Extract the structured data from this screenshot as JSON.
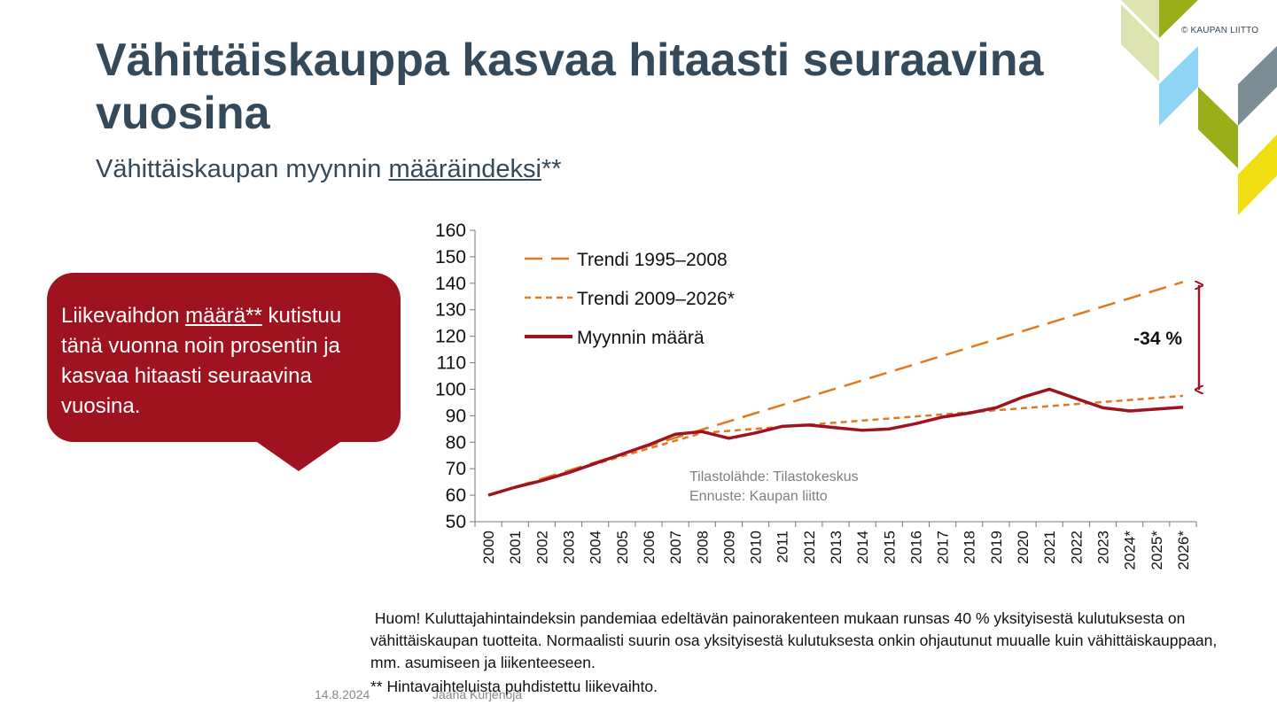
{
  "header": {
    "title": "Vähittäiskauppa kasvaa hitaasti seuraavina vuosina",
    "subtitle_prefix": "Vähittäiskaupan myynnin ",
    "subtitle_link": "määräindeksi",
    "subtitle_suffix": "**",
    "copyright": "© KAUPAN LIITTO"
  },
  "callout": {
    "part1": "Liikevaihdon ",
    "underlined": "määrä**",
    "part2": " kutistuu tänä vuonna noin prosentin ja kasvaa hitaasti seuraavina vuosina."
  },
  "colors": {
    "title": "#34495a",
    "callout_bg": "#9f1220",
    "trend_color": "#e07a1f",
    "sales_color": "#9f1220",
    "deco_lime": "#dde3b0",
    "deco_green": "#99ae18",
    "deco_blue": "#8fd4f2",
    "deco_gray": "#7a8d95",
    "deco_yellow": "#f0df10"
  },
  "chart_data": {
    "type": "line",
    "categories": [
      "2000",
      "2001",
      "2002",
      "2003",
      "2004",
      "2005",
      "2006",
      "2007",
      "2008",
      "2009",
      "2010",
      "2011",
      "2012",
      "2013",
      "2014",
      "2015",
      "2016",
      "2017",
      "2018",
      "2019",
      "2020",
      "2021",
      "2022",
      "2023",
      "2024*",
      "2025*",
      "2026*"
    ],
    "ylim": [
      50,
      160
    ],
    "yticks": [
      50,
      60,
      70,
      80,
      90,
      100,
      110,
      120,
      130,
      140,
      150,
      160
    ],
    "series": [
      {
        "name": "Trendi 1995–2008",
        "style": "long-dash",
        "points": [
          [
            0,
            60
          ],
          [
            26,
            140.5
          ]
        ]
      },
      {
        "name": "Trendi 2009–2026*",
        "style": "short-dash",
        "points": [
          [
            0,
            60
          ],
          [
            8,
            83.5
          ],
          [
            26,
            97.5
          ]
        ]
      },
      {
        "name": "Myynnin määrä",
        "style": "solid",
        "values": [
          60,
          63,
          65.5,
          68.5,
          72,
          75.5,
          79,
          83,
          84,
          81.5,
          83.5,
          86,
          86.5,
          85.5,
          84.5,
          85,
          87,
          89.5,
          91,
          93,
          97,
          100,
          96.5,
          93,
          91.8,
          92.5,
          93.2
        ]
      }
    ],
    "annotation": "-34 %",
    "source_lines": [
      "Tilastolähde: Tilastokeskus",
      "Ennuste: Kaupan liitto"
    ],
    "legend_position": "top-left"
  },
  "note": {
    "text": "Huom! Kuluttajahintaindeksin pandemiaa edeltävän painorakenteen mukaan runsas 40 % yksityisestä kulutuksesta on vähittäiskaupan tuotteita. Normaalisti suurin osa yksityisestä kulutuksesta onkin ohjautunut muualle kuin vähittäiskauppaan, mm. asumiseen ja liikenteeseen."
  },
  "footer": {
    "date": "14.8.2024",
    "author": "Jaana Kurjenoja",
    "footnote": "** Hintavaihteluista puhdistettu liikevaihto."
  }
}
